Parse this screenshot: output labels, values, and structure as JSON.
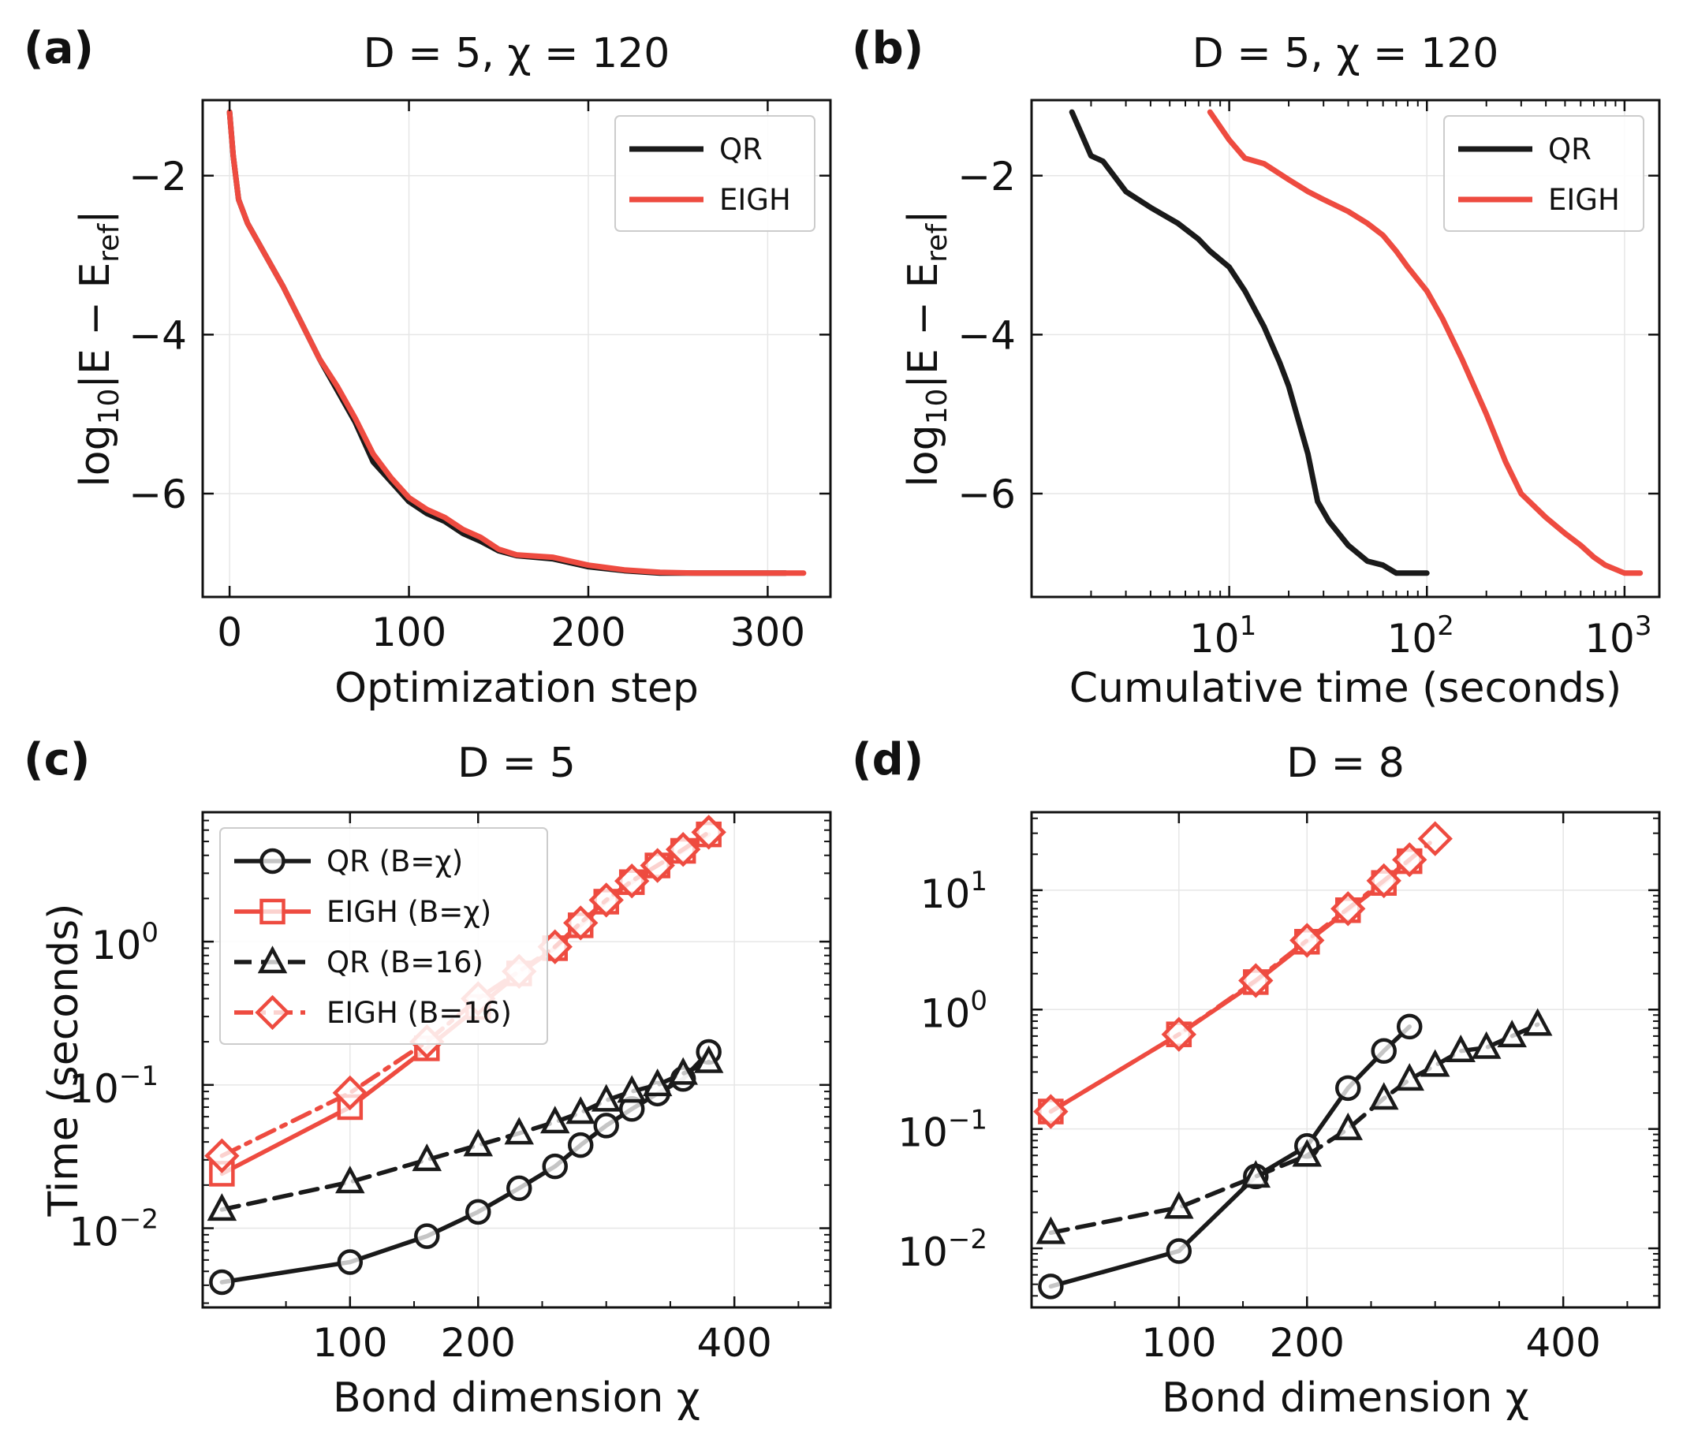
{
  "chart_data": [
    {
      "type": "line",
      "panel": "(a)",
      "title": "D = 5, χ = 120",
      "xlabel": "Optimization step",
      "ylabel": "log10|E − Eref|",
      "ylabel_parts": {
        "base": "log",
        "base_sub": "10",
        "body": "|E − E",
        "ref_sub": "ref",
        "end": "|"
      },
      "xscale": "linear",
      "xlim": [
        -15,
        335
      ],
      "ylim": [
        -7.3,
        -1.05
      ],
      "xticks": [
        0,
        100,
        200,
        300
      ],
      "xtick_labels": [
        "0",
        "100",
        "200",
        "300"
      ],
      "yticks": [
        -2,
        -4,
        -6
      ],
      "ytick_labels": [
        "−2",
        "−4",
        "−6"
      ],
      "legend": {
        "position": "top-right",
        "entries": [
          "QR",
          "EIGH"
        ]
      },
      "series": [
        {
          "name": "QR",
          "color": "#1a1a1a",
          "x": [
            0,
            2,
            5,
            10,
            20,
            30,
            40,
            50,
            60,
            70,
            80,
            90,
            100,
            110,
            120,
            130,
            140,
            150,
            160,
            180,
            200,
            220,
            240,
            260,
            280,
            300,
            310
          ],
          "y": [
            -1.2,
            -1.75,
            -2.3,
            -2.6,
            -3.0,
            -3.4,
            -3.85,
            -4.3,
            -4.7,
            -5.1,
            -5.6,
            -5.85,
            -6.1,
            -6.25,
            -6.35,
            -6.5,
            -6.6,
            -6.72,
            -6.78,
            -6.82,
            -6.92,
            -6.97,
            -7.0,
            -7.0,
            -7.0,
            -7.0,
            -7.0
          ]
        },
        {
          "name": "EIGH",
          "color": "#ee4b40",
          "x": [
            0,
            2,
            5,
            10,
            20,
            30,
            40,
            50,
            60,
            70,
            80,
            90,
            100,
            110,
            120,
            130,
            140,
            150,
            160,
            180,
            200,
            220,
            240,
            260,
            280,
            300,
            320
          ],
          "y": [
            -1.2,
            -1.75,
            -2.3,
            -2.6,
            -3.0,
            -3.4,
            -3.85,
            -4.3,
            -4.65,
            -5.05,
            -5.5,
            -5.8,
            -6.05,
            -6.2,
            -6.3,
            -6.45,
            -6.55,
            -6.7,
            -6.77,
            -6.8,
            -6.9,
            -6.96,
            -6.99,
            -7.0,
            -7.0,
            -7.0,
            -7.0
          ]
        }
      ]
    },
    {
      "type": "line",
      "panel": "(b)",
      "title": "D = 5, χ = 120",
      "xlabel": "Cumulative time (seconds)",
      "ylabel": "log10|E − Eref|",
      "ylabel_parts": {
        "base": "log",
        "base_sub": "10",
        "body": "|E − E",
        "ref_sub": "ref",
        "end": "|"
      },
      "xscale": "log",
      "xlim": [
        1.0,
        1500
      ],
      "ylim": [
        -7.3,
        -1.05
      ],
      "xticks": [
        10,
        100,
        1000
      ],
      "xtick_labels": [
        {
          "base": "10",
          "exp": "1"
        },
        {
          "base": "10",
          "exp": "2"
        },
        {
          "base": "10",
          "exp": "3"
        }
      ],
      "yticks": [
        -2,
        -4,
        -6
      ],
      "ytick_labels": [
        "−2",
        "−4",
        "−6"
      ],
      "legend": {
        "position": "top-right",
        "entries": [
          "QR",
          "EIGH"
        ]
      },
      "series": [
        {
          "name": "QR",
          "color": "#1a1a1a",
          "x": [
            1.6,
            2.0,
            2.3,
            3.0,
            4.0,
            5.5,
            7.0,
            8.0,
            10,
            12,
            15,
            18,
            20,
            25,
            28,
            32,
            40,
            50,
            60,
            70,
            80,
            100
          ],
          "y": [
            -1.2,
            -1.75,
            -1.82,
            -2.2,
            -2.4,
            -2.6,
            -2.8,
            -2.95,
            -3.15,
            -3.45,
            -3.9,
            -4.35,
            -4.65,
            -5.5,
            -6.1,
            -6.35,
            -6.65,
            -6.85,
            -6.9,
            -7.0,
            -7.0,
            -7.0
          ]
        },
        {
          "name": "EIGH",
          "color": "#ee4b40",
          "x": [
            8,
            10,
            12,
            15,
            20,
            25,
            30,
            40,
            50,
            60,
            70,
            80,
            100,
            120,
            150,
            200,
            250,
            300,
            400,
            500,
            600,
            700,
            800,
            1000,
            1200
          ],
          "y": [
            -1.2,
            -1.55,
            -1.78,
            -1.85,
            -2.05,
            -2.2,
            -2.3,
            -2.45,
            -2.6,
            -2.75,
            -2.95,
            -3.15,
            -3.45,
            -3.8,
            -4.3,
            -5.0,
            -5.6,
            -6.0,
            -6.3,
            -6.5,
            -6.65,
            -6.8,
            -6.9,
            -7.0,
            -7.0
          ]
        }
      ]
    },
    {
      "type": "line",
      "panel": "(c)",
      "title": "D = 5",
      "xlabel": "Bond dimension χ",
      "ylabel": "Time (seconds)",
      "xscale": "linear",
      "yscale": "log",
      "xlim": [
        -15,
        475
      ],
      "ylim": [
        0.0028,
        8.0
      ],
      "xticks": [
        100,
        200,
        400
      ],
      "xtick_labels": [
        "100",
        "200",
        "400"
      ],
      "yticks": [
        0.01,
        0.1,
        1
      ],
      "ytick_labels": [
        {
          "base": "10",
          "exp": "−2"
        },
        {
          "base": "10",
          "exp": "−1"
        },
        {
          "base": "10",
          "exp": "0"
        }
      ],
      "legend": {
        "position": "top-left",
        "entries": [
          "QR (B=χ)",
          "EIGH (B=χ)",
          "QR (B=16)",
          "EIGH (B=16)"
        ]
      },
      "series": [
        {
          "name": "QR (B=χ)",
          "color": "#1a1a1a",
          "marker": "circle",
          "dash": "solid",
          "x": [
            0,
            100,
            160,
            200,
            232,
            260,
            280,
            300,
            320,
            340,
            360,
            380
          ],
          "y": [
            0.0042,
            0.0058,
            0.0088,
            0.013,
            0.019,
            0.027,
            0.038,
            0.052,
            0.068,
            0.087,
            0.11,
            0.17
          ]
        },
        {
          "name": "EIGH (B=χ)",
          "color": "#ee4b40",
          "marker": "square",
          "dash": "solid",
          "x": [
            0,
            100,
            160,
            200,
            232,
            260,
            280,
            300,
            320,
            340,
            360,
            380
          ],
          "y": [
            0.024,
            0.07,
            0.18,
            0.35,
            0.6,
            0.9,
            1.3,
            1.9,
            2.6,
            3.4,
            4.3,
            5.6
          ]
        },
        {
          "name": "QR (B=16)",
          "color": "#1a1a1a",
          "marker": "triangle",
          "dash": "dashed",
          "x": [
            0,
            100,
            160,
            200,
            232,
            260,
            280,
            300,
            320,
            340,
            360,
            380
          ],
          "y": [
            0.0135,
            0.021,
            0.03,
            0.038,
            0.046,
            0.055,
            0.064,
            0.078,
            0.09,
            0.1,
            0.12,
            0.145
          ]
        },
        {
          "name": "EIGH (B=16)",
          "color": "#ee4b40",
          "marker": "diamond",
          "dash": "dashdot",
          "x": [
            0,
            100,
            160,
            200,
            232,
            260,
            280,
            300,
            320,
            340,
            360,
            380
          ],
          "y": [
            0.032,
            0.088,
            0.2,
            0.4,
            0.62,
            0.92,
            1.35,
            1.95,
            2.65,
            3.4,
            4.4,
            5.8
          ]
        }
      ]
    },
    {
      "type": "line",
      "panel": "(d)",
      "title": "D = 8",
      "xlabel": "Bond dimension χ",
      "ylabel": "",
      "xscale": "linear",
      "yscale": "log",
      "xlim": [
        -15,
        475
      ],
      "ylim": [
        0.0032,
        45
      ],
      "xticks": [
        100,
        200,
        400
      ],
      "xtick_labels": [
        "100",
        "200",
        "400"
      ],
      "yticks": [
        0.01,
        0.1,
        1,
        10
      ],
      "ytick_labels": [
        {
          "base": "10",
          "exp": "−2"
        },
        {
          "base": "10",
          "exp": "−1"
        },
        {
          "base": "10",
          "exp": "0"
        },
        {
          "base": "10",
          "exp": "1"
        }
      ],
      "series": [
        {
          "name": "QR (B=χ)",
          "color": "#1a1a1a",
          "marker": "circle",
          "dash": "solid",
          "x": [
            0,
            100,
            160,
            200,
            232,
            260,
            280
          ],
          "y": [
            0.0048,
            0.0095,
            0.04,
            0.072,
            0.22,
            0.45,
            0.72
          ]
        },
        {
          "name": "EIGH (B=χ)",
          "color": "#ee4b40",
          "marker": "square",
          "dash": "solid",
          "x": [
            0,
            100,
            160,
            200,
            232,
            260,
            280
          ],
          "y": [
            0.14,
            0.62,
            1.7,
            3.7,
            6.8,
            11.5,
            17.5
          ]
        },
        {
          "name": "QR (B=16)",
          "color": "#1a1a1a",
          "marker": "triangle",
          "dash": "dashed",
          "x": [
            0,
            100,
            160,
            200,
            232,
            260,
            280,
            300,
            320,
            340,
            360,
            380
          ],
          "y": [
            0.0135,
            0.022,
            0.04,
            0.06,
            0.1,
            0.18,
            0.26,
            0.34,
            0.45,
            0.48,
            0.6,
            0.75
          ]
        },
        {
          "name": "EIGH (B=16)",
          "color": "#ee4b40",
          "marker": "diamond",
          "dash": "dashdot",
          "x": [
            0,
            100,
            160,
            200,
            232,
            260,
            280,
            300
          ],
          "y": [
            0.14,
            0.62,
            1.75,
            3.8,
            7.0,
            12.0,
            18.0,
            27.0
          ]
        }
      ]
    }
  ]
}
